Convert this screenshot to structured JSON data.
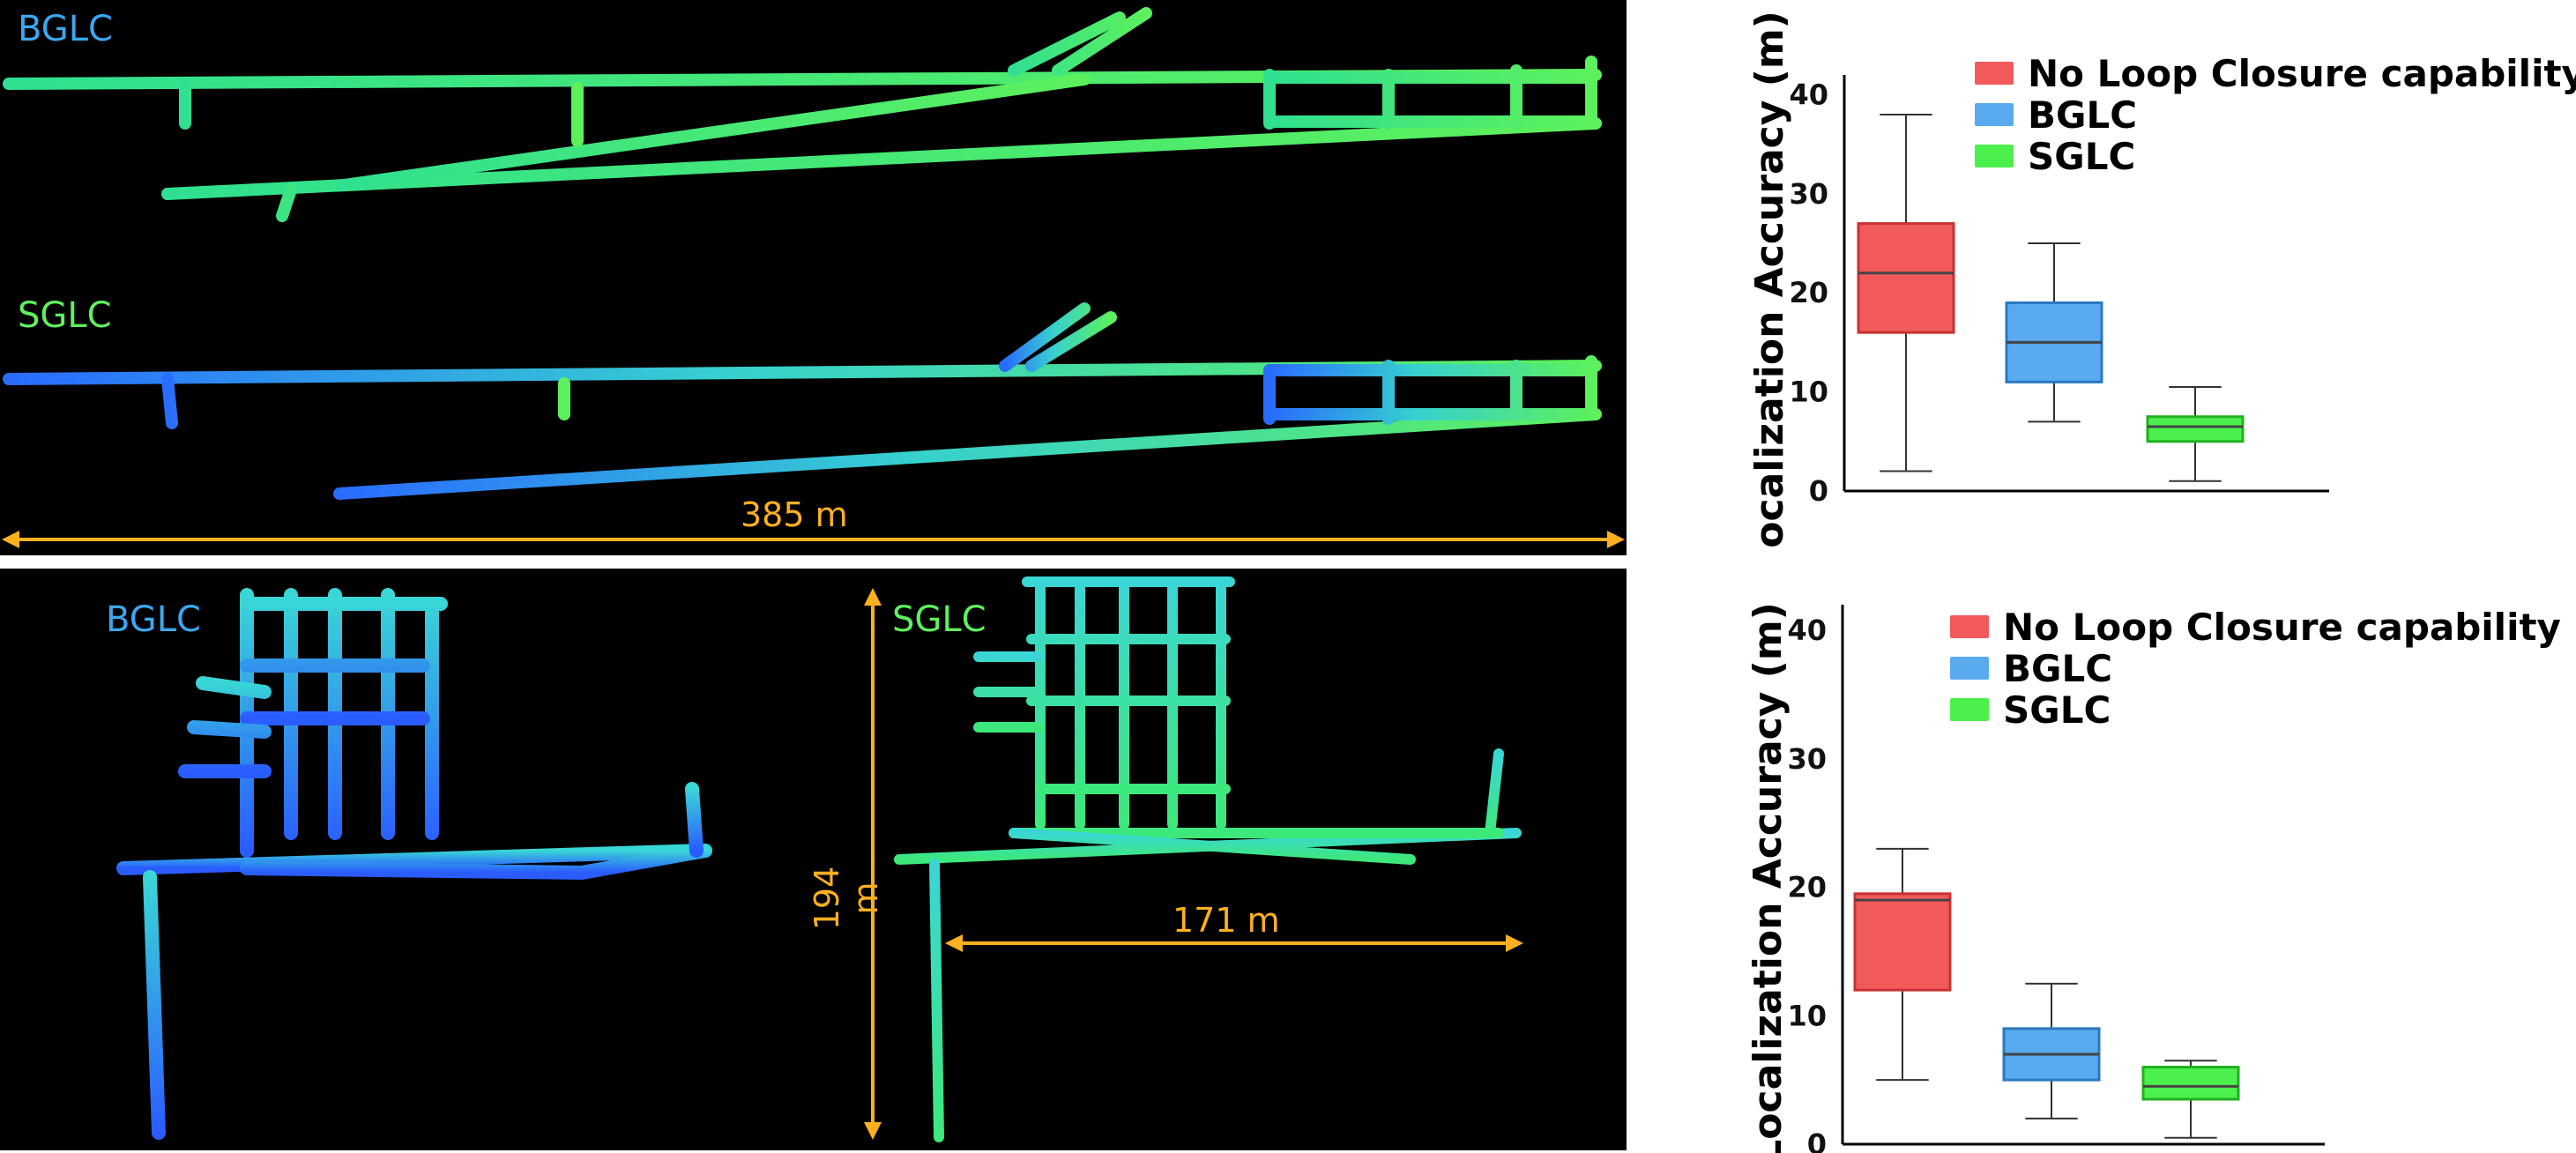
{
  "maps": {
    "top": {
      "label_bglc": "BGLC",
      "label_sglc": "SGLC",
      "scale_horizontal": "385 m"
    },
    "bottom": {
      "label_bglc": "BGLC",
      "label_sglc": "SGLC",
      "scale_vertical": "194 m",
      "scale_horizontal": "171 m"
    },
    "colors": {
      "bglc_text": "#3aa8f0",
      "sglc_text": "#5ff05f",
      "scale": "#ffb020",
      "cloud_green": "#3de87a",
      "cloud_cyan": "#3ad6d6",
      "cloud_blue": "#2a5cff"
    }
  },
  "chart_data": [
    {
      "type": "box",
      "ylabel": "Localization Accuracy (m)",
      "ylim": [
        0,
        42
      ],
      "yticks": [
        0,
        10,
        20,
        30,
        40
      ],
      "legend_position": "top-right",
      "series": [
        {
          "name": "No Loop Closure capability",
          "color": "#f25a5a",
          "border": "#c83232",
          "min": 2,
          "q1": 16,
          "median": 22,
          "q3": 27,
          "max": 38
        },
        {
          "name": "BGLC",
          "color": "#5aaaf0",
          "border": "#2a78c0",
          "min": 7,
          "q1": 11,
          "median": 15,
          "q3": 19,
          "max": 25
        },
        {
          "name": "SGLC",
          "color": "#4cf04c",
          "border": "#22b022",
          "min": 1,
          "q1": 5,
          "median": 6.5,
          "q3": 7.5,
          "max": 10.5
        }
      ]
    },
    {
      "type": "box",
      "ylabel": "Localization Accuracy (m)",
      "ylim": [
        0,
        42
      ],
      "yticks": [
        0,
        10,
        20,
        30,
        40
      ],
      "legend_position": "top-right",
      "series": [
        {
          "name": "No Loop Closure capability",
          "color": "#f25a5a",
          "border": "#c83232",
          "min": 5,
          "q1": 12,
          "median": 19,
          "q3": 19.5,
          "max": 23
        },
        {
          "name": "BGLC",
          "color": "#5aaaf0",
          "border": "#2a78c0",
          "min": 2,
          "q1": 5,
          "median": 7,
          "q3": 9,
          "max": 12.5
        },
        {
          "name": "SGLC",
          "color": "#4cf04c",
          "border": "#22b022",
          "min": 0.5,
          "q1": 3.5,
          "median": 4.5,
          "q3": 6,
          "max": 6.5
        }
      ]
    }
  ]
}
